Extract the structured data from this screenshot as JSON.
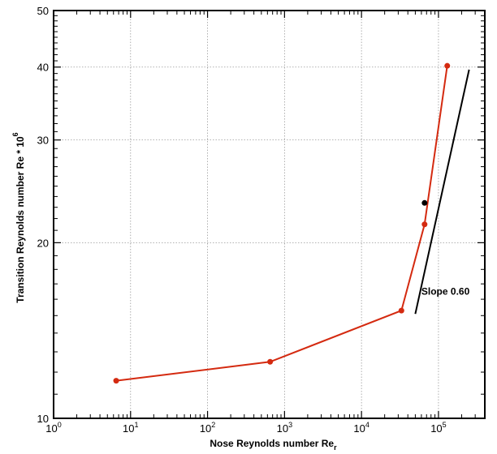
{
  "chart_data": {
    "type": "line",
    "title": "",
    "xlabel": "Nose Reynolds number Re",
    "xlabel_subscript": "r",
    "ylabel": "Transition Reynolds number Re * 10",
    "ylabel_superscript": "6",
    "x_scale": "log",
    "y_scale": "log",
    "xlim": [
      1,
      400000
    ],
    "ylim": [
      10,
      50
    ],
    "grid": true,
    "x_ticks": [
      {
        "value": 1,
        "base": "10",
        "exp": "0"
      },
      {
        "value": 10,
        "base": "10",
        "exp": "1"
      },
      {
        "value": 100,
        "base": "10",
        "exp": "2"
      },
      {
        "value": 1000,
        "base": "10",
        "exp": "3"
      },
      {
        "value": 10000,
        "base": "10",
        "exp": "4"
      },
      {
        "value": 100000,
        "base": "10",
        "exp": "5"
      }
    ],
    "y_ticks": [
      {
        "value": 10,
        "label": "10"
      },
      {
        "value": 20,
        "label": "20"
      },
      {
        "value": 30,
        "label": "30"
      },
      {
        "value": 40,
        "label": "40"
      },
      {
        "value": 50,
        "label": "50"
      }
    ],
    "series": [
      {
        "color": "#d42a10",
        "x": [
          6.5,
          650,
          33000,
          66000,
          130000
        ],
        "y": [
          11.6,
          12.5,
          15.3,
          21.5,
          40.2
        ]
      }
    ],
    "extra_points": [
      {
        "x": 66000,
        "y": 23.4,
        "color": "#000000"
      }
    ],
    "reference_line": {
      "x": [
        50000,
        250000
      ],
      "y": [
        15.1,
        39.6
      ],
      "color": "#000000",
      "label": "Slope 0.60",
      "label_at": {
        "x": 60000,
        "y": 16.3
      }
    }
  }
}
